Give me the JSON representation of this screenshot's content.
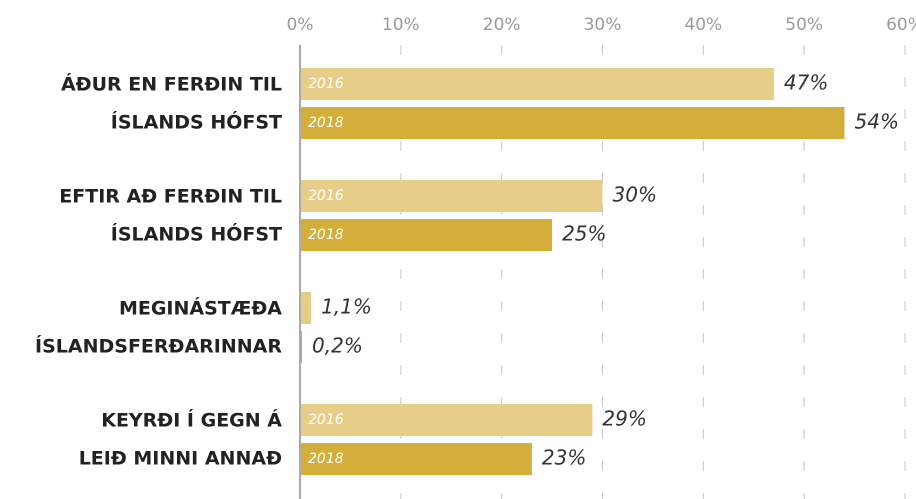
{
  "chart_data": {
    "type": "hbar",
    "categories": [
      [
        "ÁÐUR EN FERÐIN TIL",
        "ÍSLANDS HÓFST"
      ],
      [
        "EFTIR AÐ FERÐIN TIL",
        "ÍSLANDS HÓFST"
      ],
      [
        "MEGINÁSTÆÐA",
        "ÍSLANDSFERÐARINNAR"
      ],
      [
        "KEYRÐI Í GEGN Á",
        "LEIÐ MINNI ANNAÐ"
      ]
    ],
    "series": [
      {
        "name": "2016",
        "color": "#e6cd88",
        "values": [
          47,
          30,
          1.1,
          29
        ],
        "value_labels": [
          "47%",
          "30%",
          "1,1%",
          "29%"
        ]
      },
      {
        "name": "2018",
        "color": "#d3ae3b",
        "values": [
          54,
          25,
          0.2,
          23
        ],
        "value_labels": [
          "54%",
          "25%",
          "0,2%",
          "23%"
        ]
      }
    ],
    "xlim": [
      0,
      60
    ],
    "xticks": [
      {
        "value": 0,
        "label": "0%"
      },
      {
        "value": 10,
        "label": "10%"
      },
      {
        "value": 20,
        "label": "20%"
      },
      {
        "value": 30,
        "label": "30%"
      },
      {
        "value": 40,
        "label": "40%"
      },
      {
        "value": 50,
        "label": "50%"
      },
      {
        "value": 60,
        "label": "60%"
      }
    ],
    "grid": true
  }
}
